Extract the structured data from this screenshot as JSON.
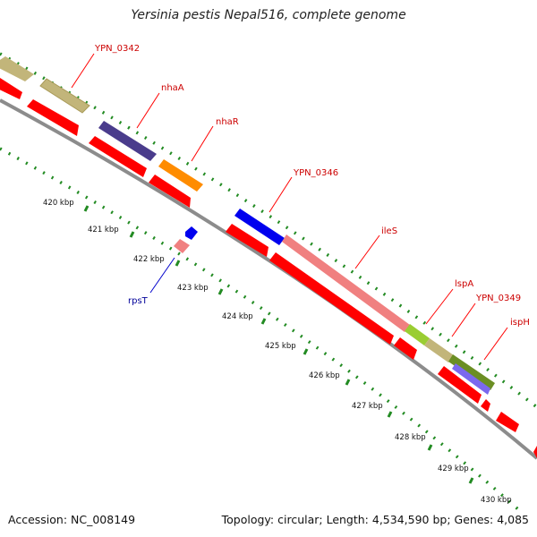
{
  "title": "Yersinia pestis Nepal516, complete genome",
  "footer": {
    "accession": "Accession: NC_008149",
    "summary": "Topology: circular; Length: 4,534,590 bp; Genes: 4,085"
  },
  "colors": {
    "backbone": "#8c8c8c",
    "cds": "#ff0000",
    "gene_label": "#cc0000",
    "rpsT_label": "#000099",
    "tick_dots": "#228b22"
  },
  "gene_labels": [
    "YPN_0342",
    "nhaA",
    "nhaR",
    "YPN_0346",
    "ileS",
    "lspA",
    "YPN_0349",
    "ispH",
    "rpsT"
  ],
  "kbp_labels": [
    "420 kbp",
    "421 kbp",
    "422 kbp",
    "423 kbp",
    "424 kbp",
    "425 kbp",
    "426 kbp",
    "427 kbp",
    "428 kbp",
    "429 kbp",
    "430 kbp"
  ]
}
